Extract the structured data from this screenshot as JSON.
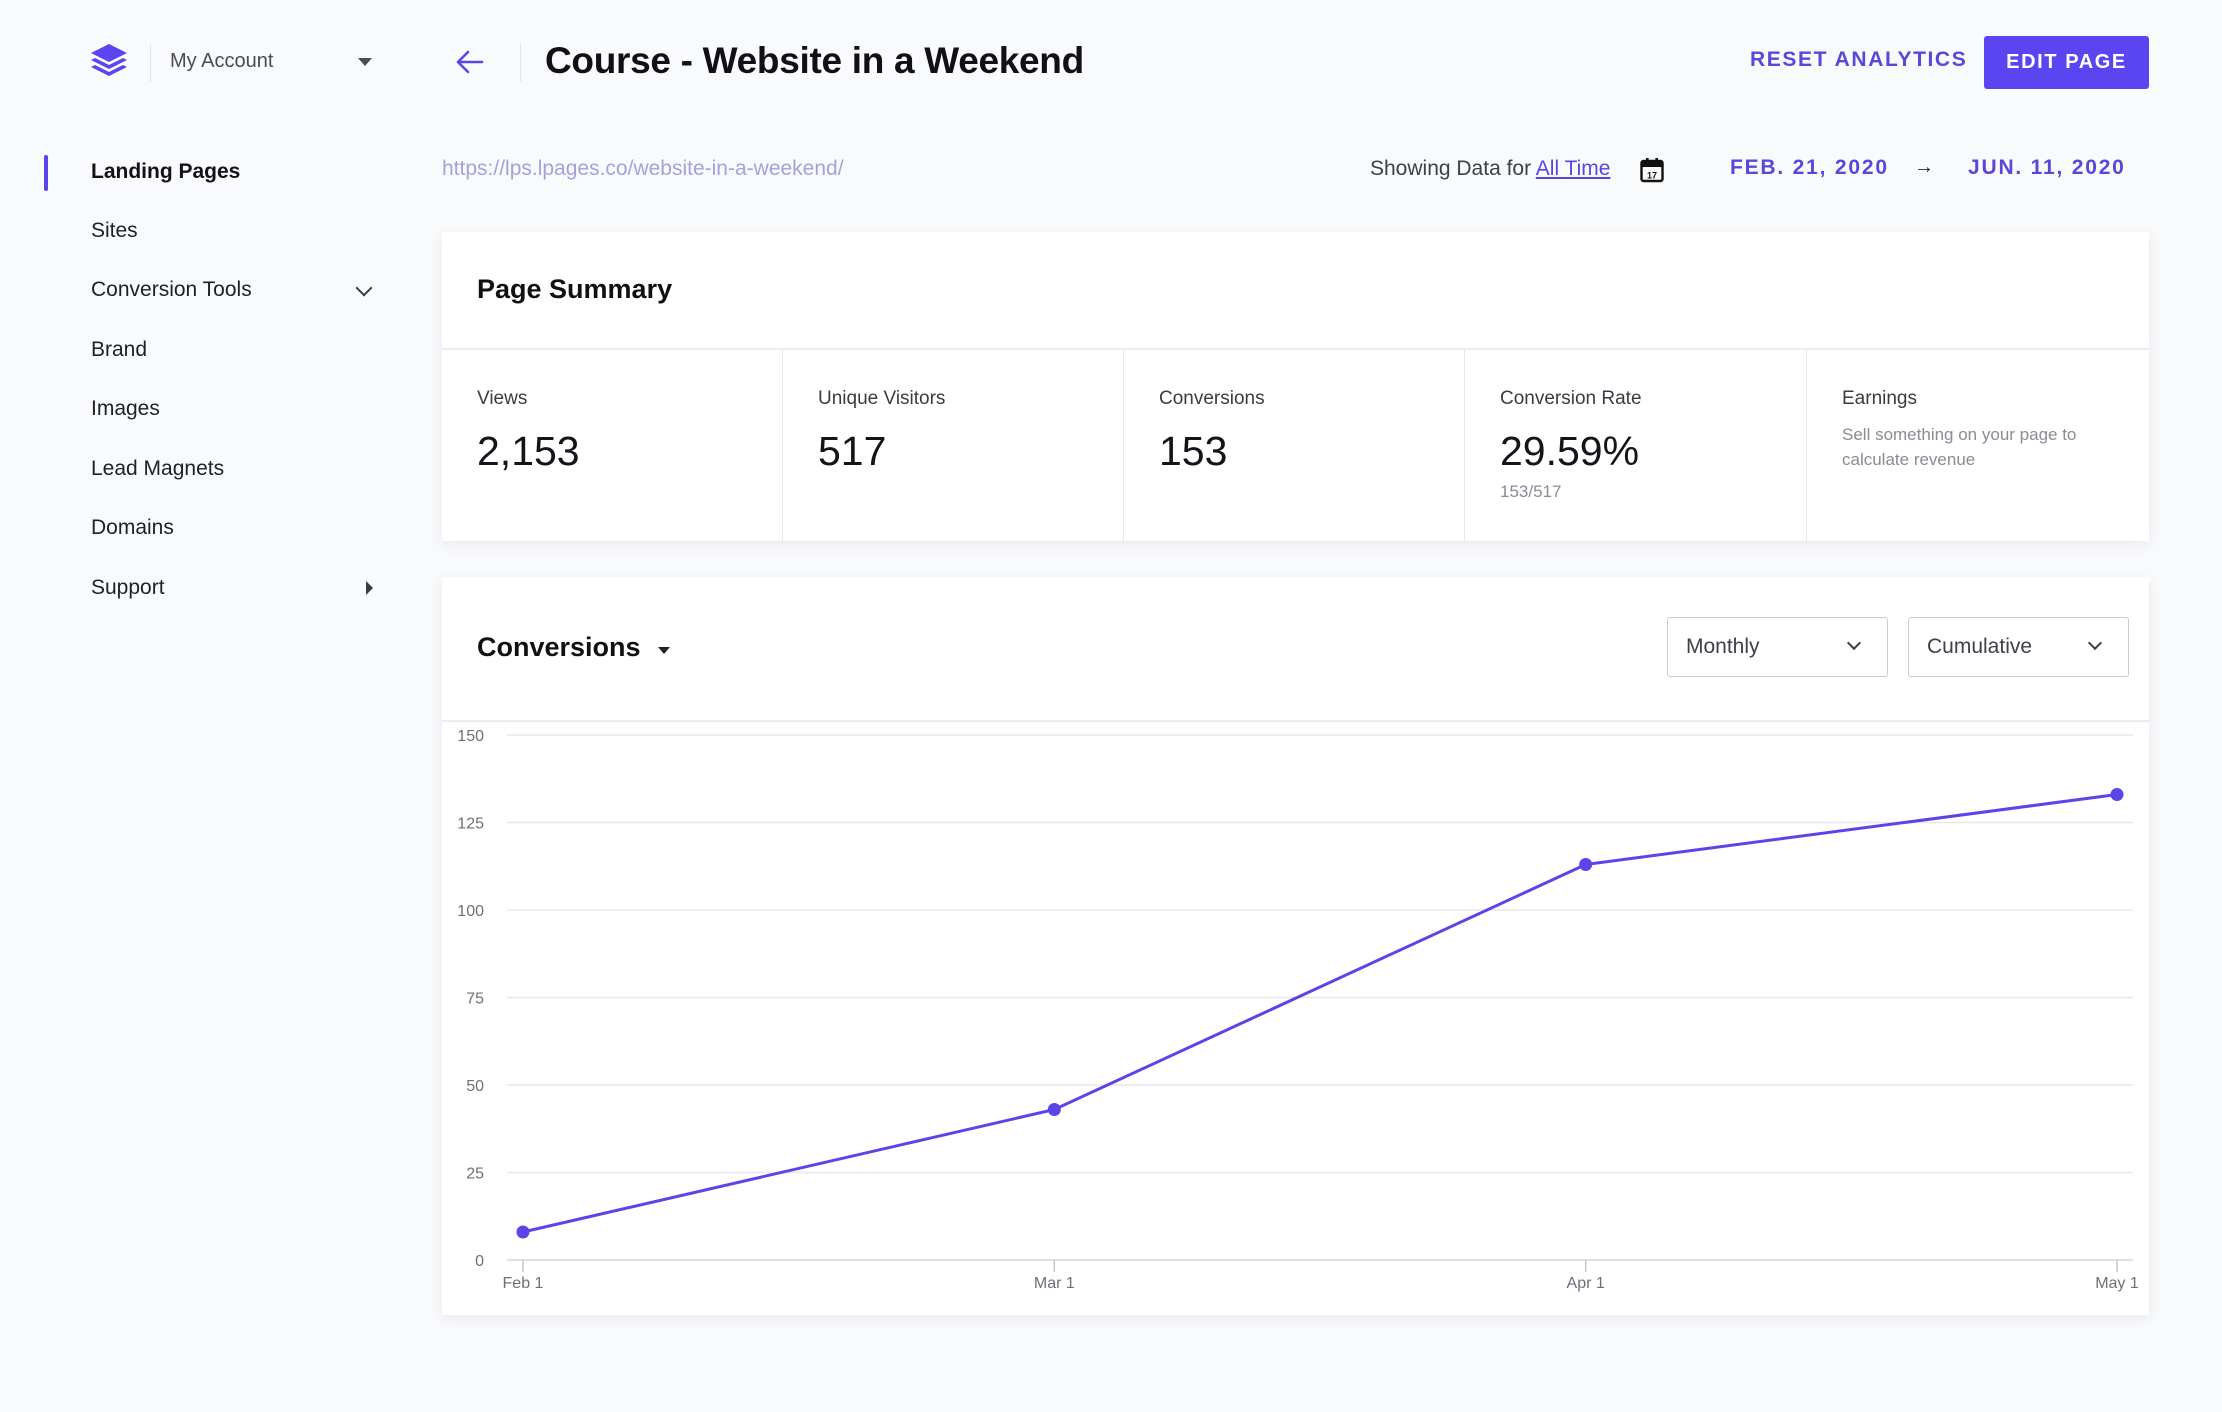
{
  "account": {
    "label": "My Account",
    "logo": "layers-logo-icon"
  },
  "sidebar": {
    "items": [
      {
        "label": "Landing Pages",
        "active": true
      },
      {
        "label": "Sites"
      },
      {
        "label": "Conversion Tools",
        "icon": "chevron-down-icon"
      },
      {
        "label": "Brand"
      },
      {
        "label": "Images"
      },
      {
        "label": "Lead Magnets"
      },
      {
        "label": "Domains"
      },
      {
        "label": "Support",
        "icon": "caret-right-icon"
      }
    ]
  },
  "header": {
    "title": "Course - Website in a Weekend",
    "reset_label": "RESET ANALYTICS",
    "edit_label": "EDIT PAGE",
    "url": "https://lps.lpages.co/website-in-a-weekend/",
    "showing_prefix": "Showing Data for",
    "showing_range": "All Time",
    "date_start": "FEB. 21, 2020",
    "date_arrow": "→",
    "date_end": "JUN. 11, 2020"
  },
  "summary": {
    "title": "Page Summary",
    "metrics": [
      {
        "label": "Views",
        "value": "2,153"
      },
      {
        "label": "Unique Visitors",
        "value": "517"
      },
      {
        "label": "Conversions",
        "value": "153"
      },
      {
        "label": "Conversion Rate",
        "value": "29.59%",
        "sub": "153/517"
      },
      {
        "label": "Earnings",
        "description": "Sell something on your page to calculate revenue"
      }
    ]
  },
  "chart_card": {
    "title": "Conversions",
    "interval": "Monthly",
    "mode": "Cumulative"
  },
  "colors": {
    "accent": "#5a45f0",
    "line": "#5a45e8",
    "grid": "#e6e8ee"
  },
  "chart_data": {
    "type": "line",
    "title": "Conversions",
    "xlabel": "",
    "ylabel": "",
    "x": [
      "Feb 1",
      "Mar 1",
      "Apr 1",
      "May 1"
    ],
    "series": [
      {
        "name": "Conversions (Cumulative)",
        "values": [
          8,
          43,
          113,
          133
        ]
      }
    ],
    "yticks": [
      0,
      25,
      50,
      75,
      100,
      125,
      150
    ],
    "ylim": [
      0,
      150
    ],
    "grid": true,
    "legend": "none"
  }
}
